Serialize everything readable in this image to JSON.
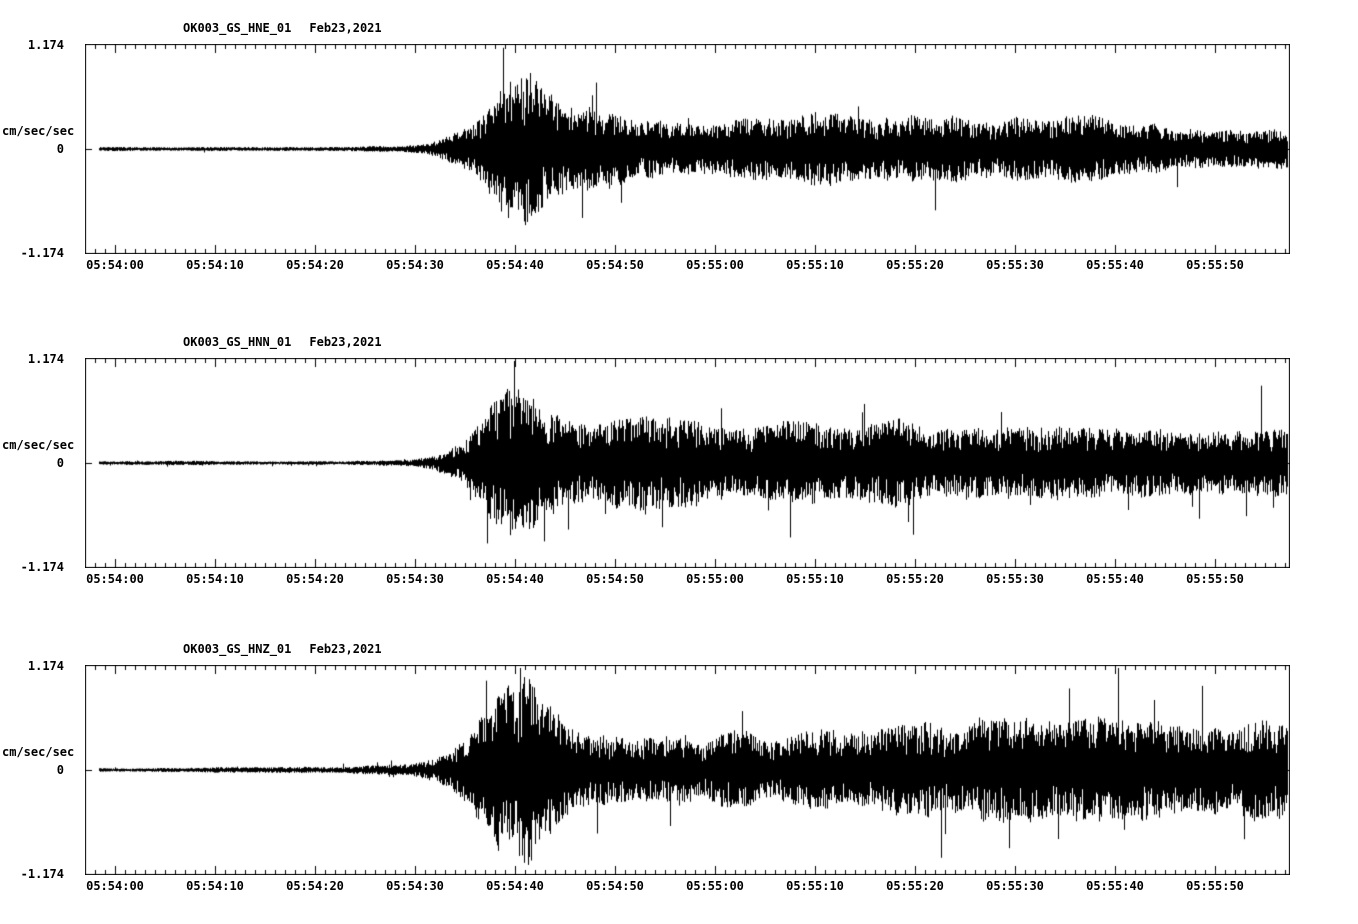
{
  "page": {
    "background_color": "#ffffff",
    "trace_color": "#000000"
  },
  "chart_data": [
    {
      "type": "line",
      "subtype": "seismogram",
      "station": "OK003_GS_HNE_01",
      "date": "Feb23,2021",
      "ylabel": "cm/sec/sec",
      "y_max_label": "1.174",
      "y_zero_label": "0",
      "y_min_label": "-1.174",
      "ylim": [
        -1.174,
        1.174
      ],
      "duration_seconds": 120.5,
      "x_tick_labels": [
        "05:54:00",
        "05:54:10",
        "05:54:20",
        "05:54:30",
        "05:54:40",
        "05:54:50",
        "05:55:00",
        "05:55:10",
        "05:55:20",
        "05:55:30",
        "05:55:40",
        "05:55:50"
      ],
      "x_tick_seconds": [
        3,
        13,
        23,
        33,
        43,
        53,
        63,
        73,
        83,
        93,
        103,
        113
      ],
      "minor_tick_every_seconds": 1,
      "major_tick_every_seconds": 10,
      "grid": false,
      "legend": "none",
      "envelope": [
        [
          0,
          0.025
        ],
        [
          20,
          0.03
        ],
        [
          30,
          0.035
        ],
        [
          33,
          0.05
        ],
        [
          35,
          0.09
        ],
        [
          37,
          0.18
        ],
        [
          39,
          0.3
        ],
        [
          41,
          0.55
        ],
        [
          43,
          0.8
        ],
        [
          44,
          0.85
        ],
        [
          46,
          0.55
        ],
        [
          48,
          0.42
        ],
        [
          52,
          0.38
        ],
        [
          56,
          0.33
        ],
        [
          62,
          0.3
        ],
        [
          70,
          0.3
        ],
        [
          73,
          0.37
        ],
        [
          76,
          0.3
        ],
        [
          90,
          0.28
        ],
        [
          100,
          0.3
        ],
        [
          110,
          0.28
        ],
        [
          120.5,
          0.3
        ]
      ]
    },
    {
      "type": "line",
      "subtype": "seismogram",
      "station": "OK003_GS_HNN_01",
      "date": "Feb23,2021",
      "ylabel": "cm/sec/sec",
      "y_max_label": "1.174",
      "y_zero_label": "0",
      "y_min_label": "-1.174",
      "ylim": [
        -1.174,
        1.174
      ],
      "duration_seconds": 120.5,
      "x_tick_labels": [
        "05:54:00",
        "05:54:10",
        "05:54:20",
        "05:54:30",
        "05:54:40",
        "05:54:50",
        "05:55:00",
        "05:55:10",
        "05:55:20",
        "05:55:30",
        "05:55:40",
        "05:55:50"
      ],
      "x_tick_seconds": [
        3,
        13,
        23,
        33,
        43,
        53,
        63,
        73,
        83,
        93,
        103,
        113
      ],
      "minor_tick_every_seconds": 1,
      "major_tick_every_seconds": 10,
      "grid": false,
      "legend": "none",
      "envelope": [
        [
          0,
          0.02
        ],
        [
          25,
          0.025
        ],
        [
          32,
          0.04
        ],
        [
          34,
          0.07
        ],
        [
          36,
          0.12
        ],
        [
          38,
          0.22
        ],
        [
          40,
          0.45
        ],
        [
          42,
          0.72
        ],
        [
          44,
          0.8
        ],
        [
          46,
          0.6
        ],
        [
          48,
          0.45
        ],
        [
          52,
          0.4
        ],
        [
          56,
          0.45
        ],
        [
          58,
          0.38
        ],
        [
          60,
          0.42
        ],
        [
          64,
          0.35
        ],
        [
          68,
          0.38
        ],
        [
          75,
          0.35
        ],
        [
          80,
          0.4
        ],
        [
          85,
          0.33
        ],
        [
          95,
          0.33
        ],
        [
          105,
          0.3
        ],
        [
          115,
          0.28
        ],
        [
          120.5,
          0.3
        ]
      ]
    },
    {
      "type": "line",
      "subtype": "seismogram",
      "station": "OK003_GS_HNZ_01",
      "date": "Feb23,2021",
      "ylabel": "cm/sec/sec",
      "y_max_label": "1.174",
      "y_zero_label": "0",
      "y_min_label": "-1.174",
      "ylim": [
        -1.174,
        1.174
      ],
      "duration_seconds": 120.5,
      "x_tick_labels": [
        "05:54:00",
        "05:54:10",
        "05:54:20",
        "05:54:30",
        "05:54:40",
        "05:54:50",
        "05:55:00",
        "05:55:10",
        "05:55:20",
        "05:55:30",
        "05:55:40",
        "05:55:50"
      ],
      "x_tick_seconds": [
        3,
        13,
        23,
        33,
        43,
        53,
        63,
        73,
        83,
        93,
        103,
        113
      ],
      "minor_tick_every_seconds": 1,
      "major_tick_every_seconds": 10,
      "grid": false,
      "legend": "none",
      "envelope": [
        [
          0,
          0.02
        ],
        [
          25,
          0.03
        ],
        [
          32,
          0.05
        ],
        [
          34,
          0.08
        ],
        [
          36,
          0.15
        ],
        [
          38,
          0.28
        ],
        [
          40,
          0.55
        ],
        [
          42,
          0.8
        ],
        [
          44,
          0.95
        ],
        [
          46,
          0.65
        ],
        [
          48,
          0.5
        ],
        [
          55,
          0.45
        ],
        [
          60,
          0.42
        ],
        [
          70,
          0.45
        ],
        [
          80,
          0.42
        ],
        [
          90,
          0.45
        ],
        [
          100,
          0.48
        ],
        [
          110,
          0.45
        ],
        [
          120.5,
          0.45
        ]
      ]
    }
  ]
}
